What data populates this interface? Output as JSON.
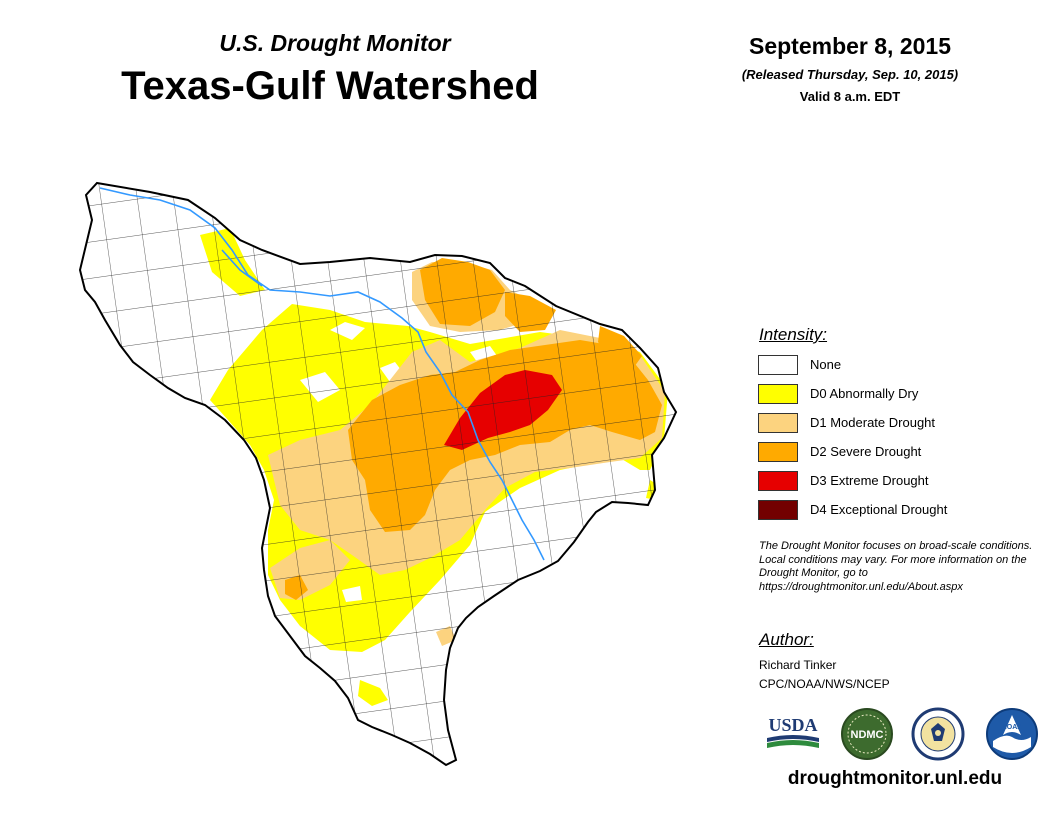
{
  "header": {
    "subtitle": "U.S. Drought Monitor",
    "title": "Texas-Gulf Watershed",
    "date": "September 8, 2015",
    "released": "(Released Thursday, Sep. 10, 2015)",
    "valid": "Valid 8 a.m. EDT"
  },
  "legend": {
    "title": "Intensity:",
    "items": [
      {
        "label": "None",
        "color": "#ffffff"
      },
      {
        "label": "D0 Abnormally Dry",
        "color": "#ffff00"
      },
      {
        "label": "D1 Moderate Drought",
        "color": "#fcd37f"
      },
      {
        "label": "D2 Severe Drought",
        "color": "#ffaa00"
      },
      {
        "label": "D3 Extreme Drought",
        "color": "#e60000"
      },
      {
        "label": "D4 Exceptional Drought",
        "color": "#730000"
      }
    ]
  },
  "note": "The Drought Monitor focuses on broad-scale conditions. Local conditions may vary. For more information on the Drought Monitor, go to https://droughtmonitor.unl.edu/About.aspx",
  "author": {
    "title": "Author:",
    "name": "Richard Tinker",
    "org": "CPC/NOAA/NWS/NCEP"
  },
  "logos": {
    "usda": "USDA",
    "ndmc": "NDMC",
    "noaa": "NOAA",
    "usda_icon": "usda-logo",
    "ndmc_icon": "ndmc-logo",
    "doc_icon": "commerce-seal",
    "noaa_icon": "noaa-logo"
  },
  "footer": {
    "url": "droughtmonitor.unl.edu"
  },
  "colors": {
    "river": "#3399ff",
    "county_lines": "#222222"
  }
}
